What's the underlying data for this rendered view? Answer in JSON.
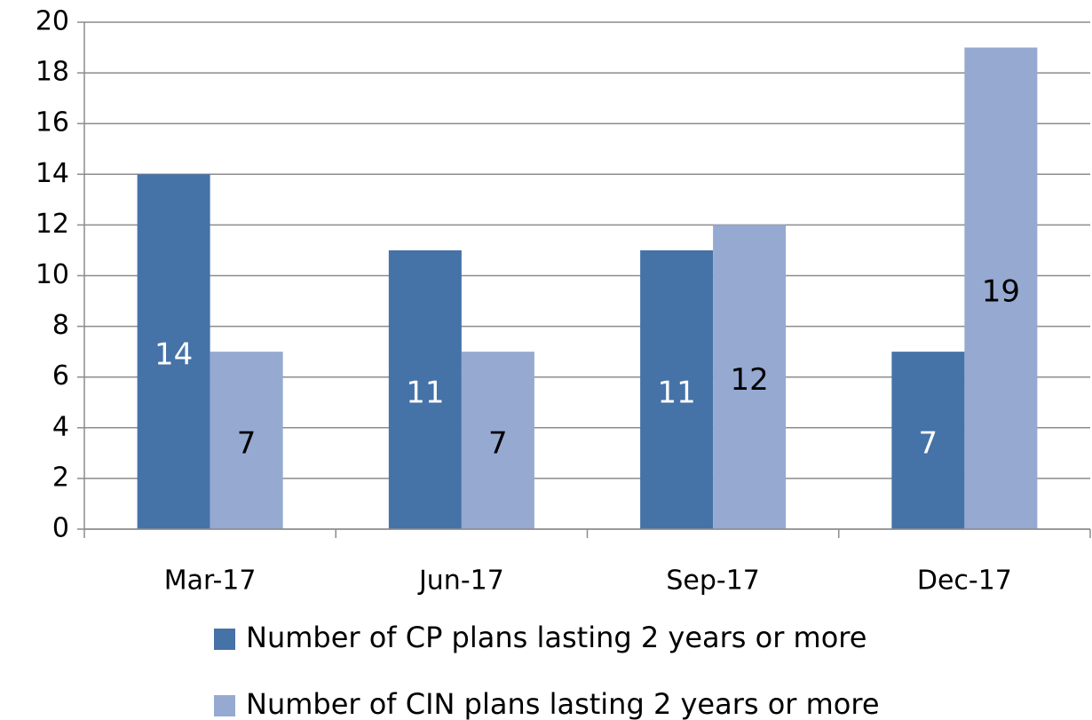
{
  "chart_data": {
    "type": "bar",
    "categories": [
      "Mar-17",
      "Jun-17",
      "Sep-17",
      "Dec-17"
    ],
    "series": [
      {
        "name": "Number of CP plans lasting 2 years or more",
        "color": "#4572a7",
        "label_color": "#ffffff",
        "values": [
          14,
          11,
          11,
          7
        ]
      },
      {
        "name": "Number of CIN plans lasting 2 years or more",
        "color": "#95a9d1",
        "label_color": "#000000",
        "values": [
          7,
          7,
          12,
          19
        ]
      }
    ],
    "ylim": [
      0,
      20
    ],
    "yticks": [
      0,
      2,
      4,
      6,
      8,
      10,
      12,
      14,
      16,
      18,
      20
    ],
    "grid": true,
    "legend": "bottom"
  }
}
